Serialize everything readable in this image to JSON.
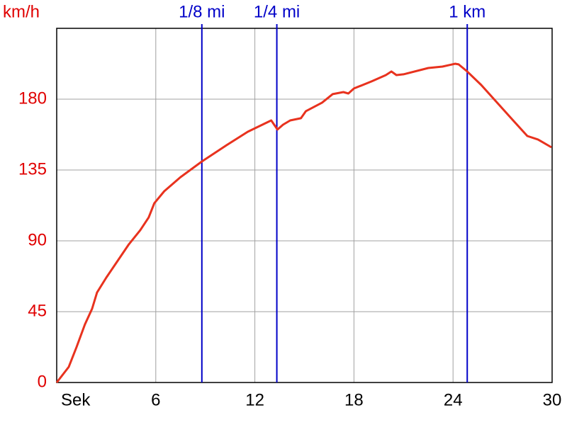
{
  "chart_data": {
    "type": "line",
    "y_label": "km/h",
    "xlim": [
      0,
      30
    ],
    "ylim": [
      0,
      225
    ],
    "xticks": [
      {
        "value": 0,
        "label": "Sek"
      },
      6,
      12,
      18,
      24,
      30
    ],
    "yticks": [
      0,
      45,
      90,
      135,
      180
    ],
    "grid": true,
    "tick_color_y": "#e00000",
    "tick_color_x": "#000000",
    "markers": [
      {
        "value": 8.79,
        "label": "1/8 mi"
      },
      {
        "value": 13.33,
        "label": "1/4 mi"
      },
      {
        "value": 24.86,
        "label": "1 km"
      }
    ],
    "marker_color": "#0000c8",
    "x": [
      0,
      0.73,
      1.2,
      1.71,
      2.14,
      2.44,
      3.0,
      3.64,
      4.37,
      5.06,
      5.57,
      5.91,
      6.51,
      7.5,
      8.79,
      10.29,
      11.57,
      12.99,
      13.37,
      13.71,
      14.14,
      14.79,
      15.09,
      16.07,
      16.71,
      17.36,
      17.66,
      18.0,
      19.07,
      19.93,
      20.27,
      20.57,
      21.0,
      22.5,
      23.36,
      24.13,
      24.34,
      24.86,
      25.71,
      26.79,
      27.64,
      28.5,
      29.14,
      29.96
    ],
    "series": [
      {
        "color": "#e8321e",
        "values": [
          0,
          9.9,
          22.5,
          36.9,
          46.8,
          57.2,
          66.6,
          76.5,
          87.8,
          96.8,
          104.9,
          113.9,
          121.5,
          130.5,
          140.4,
          150.8,
          159.3,
          166.5,
          160.7,
          163.8,
          166.5,
          167.9,
          172.4,
          177.8,
          183.2,
          184.5,
          183.6,
          186.8,
          191.3,
          195.3,
          197.6,
          195.3,
          195.8,
          199.8,
          200.7,
          202.5,
          202.1,
          197.6,
          189,
          176.4,
          166.5,
          156.6,
          154.4,
          149.4
        ]
      }
    ]
  }
}
